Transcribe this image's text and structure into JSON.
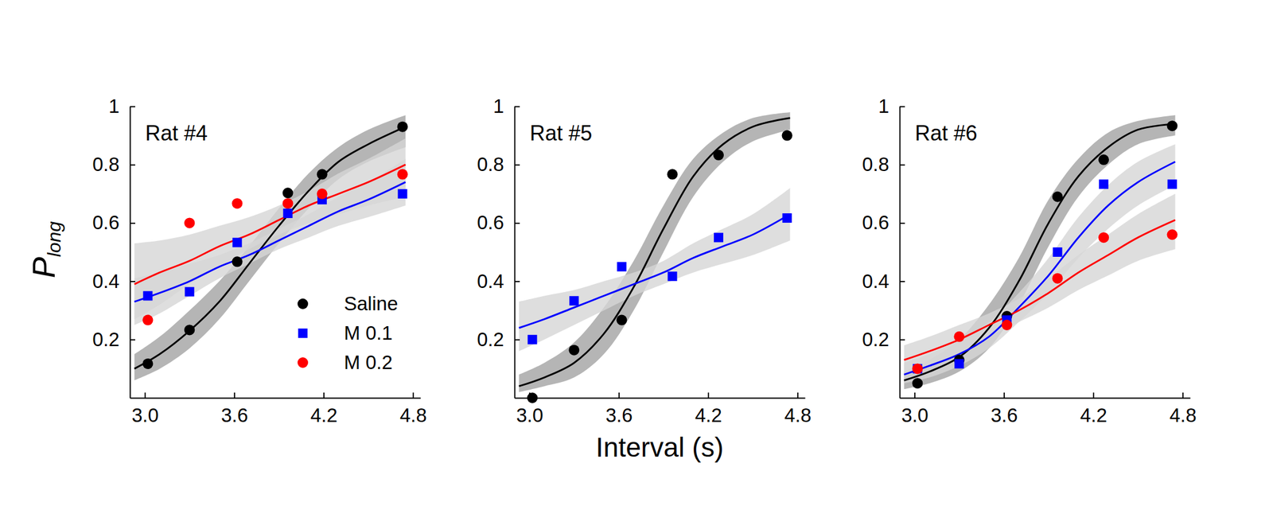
{
  "chart_data": [
    {
      "type": "scatter",
      "title": "Rat #4",
      "ylabel": "P",
      "ylabel_subscript": "long",
      "legend": "lower right",
      "xlim": [
        2.9,
        4.85
      ],
      "ylim": [
        0,
        1
      ],
      "xticks": [
        {
          "value": 3,
          "label": "3.0"
        },
        3.6,
        4.2,
        4.8
      ],
      "yticks": [
        0.2,
        0.4,
        0.6,
        0.8,
        1
      ],
      "x": [
        3.02,
        3.3,
        3.62,
        3.96,
        4.19,
        4.73
      ],
      "fit_x": [
        2.93,
        3.1,
        3.3,
        3.5,
        3.7,
        3.9,
        4.1,
        4.3,
        4.5,
        4.75
      ],
      "series": [
        {
          "name": "Saline",
          "color": "#000000",
          "marker": "circle",
          "values": [
            0.117,
            0.233,
            0.467,
            0.703,
            0.767,
            0.93
          ],
          "fit": [
            0.1,
            0.15,
            0.23,
            0.33,
            0.46,
            0.59,
            0.71,
            0.81,
            0.87,
            0.93
          ],
          "fit_lower": [
            0.06,
            0.1,
            0.17,
            0.27,
            0.4,
            0.53,
            0.65,
            0.75,
            0.81,
            0.86
          ],
          "fit_upper": [
            0.15,
            0.21,
            0.3,
            0.4,
            0.52,
            0.65,
            0.77,
            0.86,
            0.92,
            0.97
          ]
        },
        {
          "name": "M 0.1",
          "color": "#0000ff",
          "marker": "square",
          "values": [
            0.35,
            0.364,
            0.533,
            0.633,
            0.68,
            0.7
          ],
          "fit": [
            0.33,
            0.36,
            0.4,
            0.45,
            0.49,
            0.54,
            0.59,
            0.64,
            0.68,
            0.74
          ],
          "fit_lower": [
            0.25,
            0.29,
            0.35,
            0.41,
            0.46,
            0.51,
            0.55,
            0.59,
            0.62,
            0.66
          ],
          "fit_upper": [
            0.41,
            0.43,
            0.46,
            0.49,
            0.53,
            0.58,
            0.63,
            0.69,
            0.74,
            0.82
          ]
        },
        {
          "name": "M 0.2",
          "color": "#ff0000",
          "marker": "circle",
          "values": [
            0.267,
            0.6,
            0.667,
            0.667,
            0.7,
            0.767
          ],
          "fit": [
            0.39,
            0.43,
            0.47,
            0.52,
            0.56,
            0.61,
            0.66,
            0.7,
            0.74,
            0.8
          ],
          "fit_lower": [
            0.27,
            0.32,
            0.39,
            0.45,
            0.51,
            0.56,
            0.6,
            0.63,
            0.66,
            0.69
          ],
          "fit_upper": [
            0.53,
            0.54,
            0.56,
            0.59,
            0.62,
            0.66,
            0.71,
            0.77,
            0.82,
            0.89
          ]
        }
      ]
    },
    {
      "type": "scatter",
      "title": "Rat #5",
      "xlabel": "Interval (s)",
      "xlim": [
        2.9,
        4.85
      ],
      "ylim": [
        0,
        1
      ],
      "xticks": [
        {
          "value": 3,
          "label": "3.0"
        },
        3.6,
        4.2,
        4.8
      ],
      "yticks": [
        0.2,
        0.4,
        0.6,
        0.8,
        1
      ],
      "x": [
        3.02,
        3.3,
        3.62,
        3.96,
        4.27,
        4.73
      ],
      "fit_x": [
        2.93,
        3.1,
        3.3,
        3.5,
        3.7,
        3.9,
        4.1,
        4.3,
        4.5,
        4.75
      ],
      "series": [
        {
          "color": "#000000",
          "marker": "circle",
          "values": [
            0.0,
            0.164,
            0.267,
            0.767,
            0.833,
            0.9
          ],
          "fit": [
            0.04,
            0.07,
            0.12,
            0.22,
            0.38,
            0.58,
            0.76,
            0.87,
            0.93,
            0.96
          ],
          "fit_lower": [
            0.02,
            0.04,
            0.07,
            0.15,
            0.3,
            0.5,
            0.69,
            0.81,
            0.88,
            0.92
          ],
          "fit_upper": [
            0.08,
            0.12,
            0.19,
            0.31,
            0.47,
            0.66,
            0.82,
            0.91,
            0.96,
            0.98
          ]
        },
        {
          "color": "#0000ff",
          "marker": "square",
          "values": [
            0.2,
            0.333,
            0.45,
            0.417,
            0.55,
            0.617
          ],
          "fit": [
            0.24,
            0.27,
            0.31,
            0.35,
            0.39,
            0.43,
            0.48,
            0.52,
            0.56,
            0.63
          ],
          "fit_lower": [
            0.16,
            0.2,
            0.25,
            0.3,
            0.35,
            0.39,
            0.43,
            0.46,
            0.49,
            0.54
          ],
          "fit_upper": [
            0.33,
            0.35,
            0.37,
            0.4,
            0.43,
            0.47,
            0.53,
            0.58,
            0.63,
            0.72
          ]
        }
      ]
    },
    {
      "type": "scatter",
      "title": "Rat #6",
      "xlim": [
        2.9,
        4.85
      ],
      "ylim": [
        0,
        1
      ],
      "xticks": [
        {
          "value": 3,
          "label": "3.0"
        },
        3.6,
        4.2,
        4.8
      ],
      "yticks": [
        0.2,
        0.4,
        0.6,
        0.8,
        1
      ],
      "x": [
        3.02,
        3.3,
        3.62,
        3.96,
        4.27,
        4.73
      ],
      "fit_x": [
        2.93,
        3.1,
        3.3,
        3.5,
        3.7,
        3.9,
        4.1,
        4.3,
        4.5,
        4.75
      ],
      "series": [
        {
          "color": "#000000",
          "marker": "circle",
          "values": [
            0.05,
            0.13,
            0.28,
            0.69,
            0.817,
            0.933
          ],
          "fit": [
            0.06,
            0.09,
            0.14,
            0.24,
            0.4,
            0.6,
            0.76,
            0.86,
            0.92,
            0.94
          ],
          "fit_lower": [
            0.03,
            0.05,
            0.09,
            0.17,
            0.32,
            0.52,
            0.69,
            0.8,
            0.87,
            0.9
          ],
          "fit_upper": [
            0.09,
            0.13,
            0.2,
            0.32,
            0.48,
            0.68,
            0.82,
            0.91,
            0.95,
            0.97
          ]
        },
        {
          "color": "#0000ff",
          "marker": "square",
          "values": [
            0.1,
            0.117,
            0.267,
            0.5,
            0.733,
            0.733
          ],
          "fit": [
            0.08,
            0.11,
            0.15,
            0.21,
            0.31,
            0.42,
            0.55,
            0.66,
            0.74,
            0.81
          ],
          "fit_lower": [
            0.05,
            0.07,
            0.11,
            0.17,
            0.26,
            0.36,
            0.48,
            0.58,
            0.66,
            0.73
          ],
          "fit_upper": [
            0.12,
            0.15,
            0.2,
            0.26,
            0.36,
            0.48,
            0.62,
            0.73,
            0.81,
            0.87
          ]
        },
        {
          "color": "#ff0000",
          "marker": "circle",
          "values": [
            0.1,
            0.21,
            0.25,
            0.41,
            0.55,
            0.56
          ],
          "fit": [
            0.13,
            0.16,
            0.2,
            0.25,
            0.3,
            0.36,
            0.43,
            0.49,
            0.55,
            0.61
          ],
          "fit_lower": [
            0.08,
            0.11,
            0.15,
            0.21,
            0.26,
            0.31,
            0.37,
            0.42,
            0.47,
            0.51
          ],
          "fit_upper": [
            0.18,
            0.21,
            0.25,
            0.29,
            0.34,
            0.41,
            0.49,
            0.56,
            0.63,
            0.7
          ]
        }
      ]
    }
  ]
}
